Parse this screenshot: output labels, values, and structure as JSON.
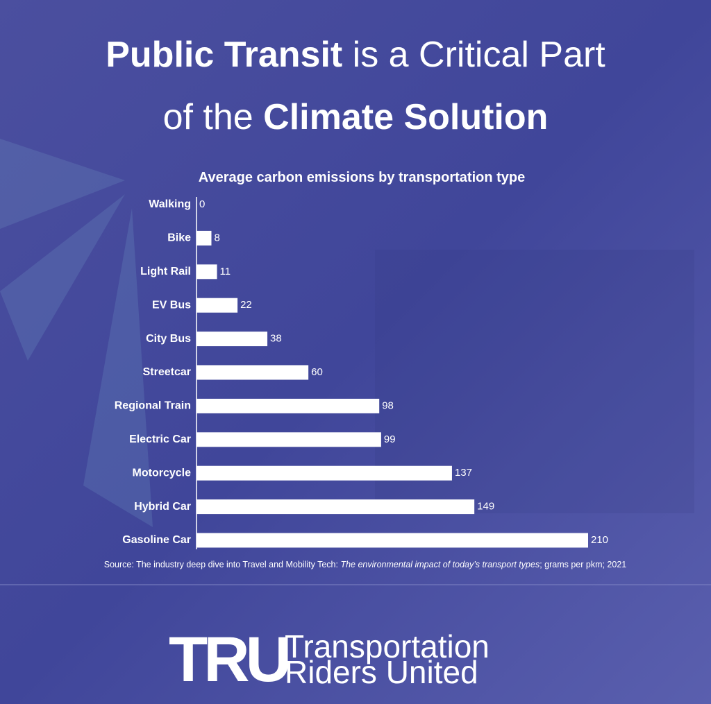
{
  "chart_data": {
    "type": "bar",
    "orientation": "horizontal",
    "title_lines": [
      [
        "Public Transit",
        "is a Critical Part"
      ],
      [
        "of the",
        "Climate Solution"
      ]
    ],
    "subtitle": "Average carbon emissions by transportation type",
    "categories": [
      "Walking",
      "Bike",
      "Light Rail",
      "EV Bus",
      "City Bus",
      "Streetcar",
      "Regional Train",
      "Electric Car",
      "Motorcycle",
      "Hybrid Car",
      "Gasoline Car"
    ],
    "values": [
      0,
      8,
      11,
      22,
      38,
      60,
      98,
      99,
      137,
      149,
      210
    ],
    "color": "#ffffff",
    "source": [
      "Source: The industry deep dive into Travel and Mobility Tech:",
      "The environmental impact of today’s transport types",
      "; grams per pkm; 2021"
    ],
    "logo": {
      "mark": "TRU",
      "lines": [
        "Transportation",
        "Riders United"
      ]
    }
  }
}
